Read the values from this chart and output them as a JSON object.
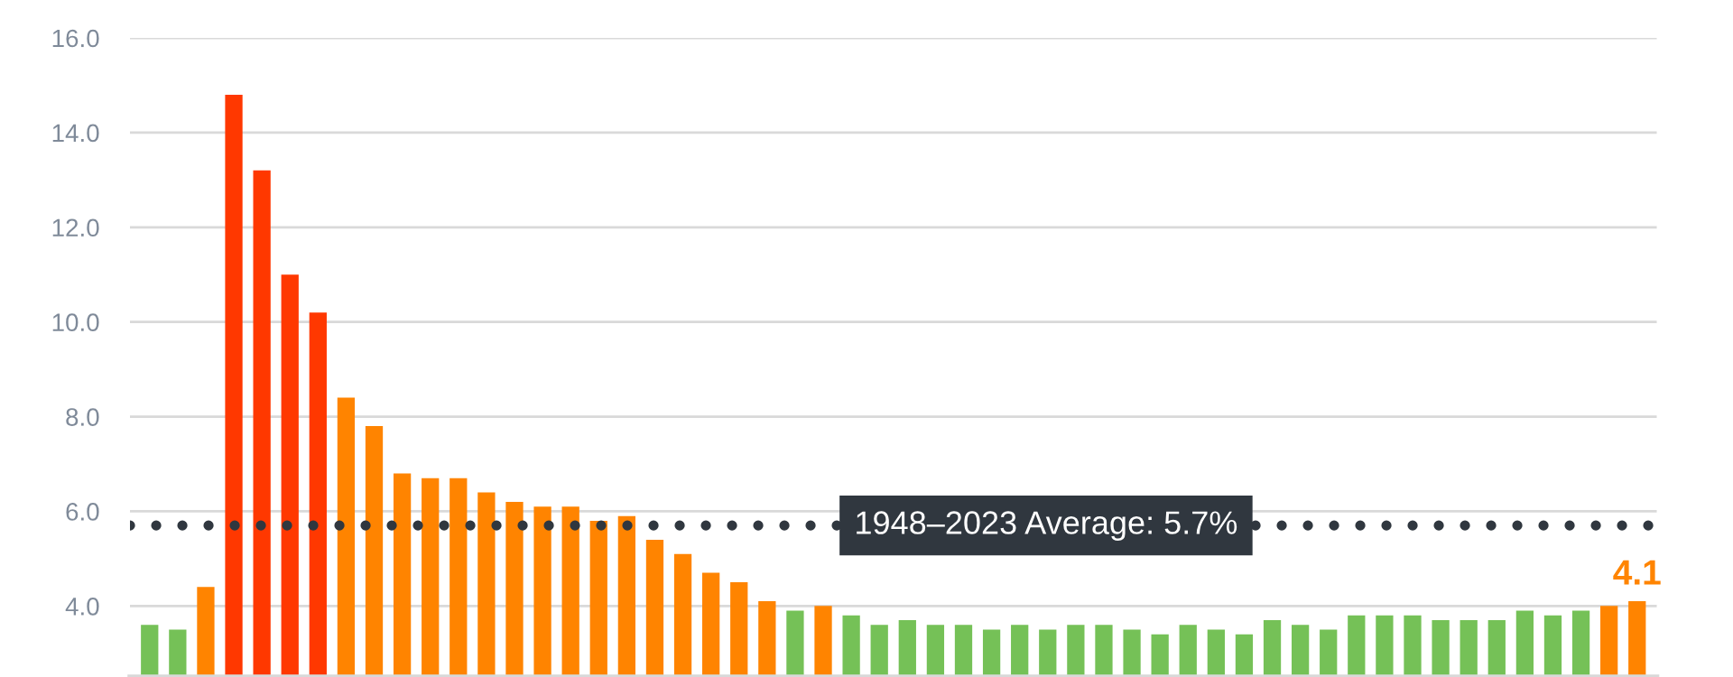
{
  "chart_data": {
    "type": "bar",
    "categories": [
      null,
      null,
      null,
      null,
      null,
      null,
      null,
      null,
      null,
      null,
      null,
      null,
      null,
      null,
      null,
      null,
      null,
      null,
      null,
      null,
      null,
      null,
      null,
      null,
      null,
      null,
      null,
      null,
      null,
      null,
      null,
      null,
      null,
      null,
      null,
      null,
      null,
      null,
      null,
      null,
      null,
      null,
      null,
      null,
      null,
      null,
      null,
      null,
      null,
      null,
      null,
      null,
      null,
      null
    ],
    "values": [
      3.6,
      3.5,
      4.4,
      14.8,
      13.2,
      11.0,
      10.2,
      8.4,
      7.8,
      6.8,
      6.7,
      6.7,
      6.4,
      6.2,
      6.1,
      6.1,
      5.8,
      5.9,
      5.4,
      5.1,
      4.7,
      4.5,
      4.1,
      3.9,
      4.0,
      3.8,
      3.6,
      3.7,
      3.6,
      3.6,
      3.5,
      3.6,
      3.5,
      3.6,
      3.6,
      3.5,
      3.4,
      3.6,
      3.5,
      3.4,
      3.7,
      3.6,
      3.5,
      3.8,
      3.8,
      3.8,
      3.7,
      3.7,
      3.7,
      3.9,
      3.8,
      3.9,
      4.0,
      4.1
    ],
    "colors": [
      "#75c157",
      "#75c157",
      "#ff8400",
      "#ff3800",
      "#ff3800",
      "#ff3800",
      "#ff3800",
      "#ff8400",
      "#ff8400",
      "#ff8400",
      "#ff8400",
      "#ff8400",
      "#ff8400",
      "#ff8400",
      "#ff8400",
      "#ff8400",
      "#ff8400",
      "#ff8400",
      "#ff8400",
      "#ff8400",
      "#ff8400",
      "#ff8400",
      "#ff8400",
      "#75c157",
      "#ff8400",
      "#75c157",
      "#75c157",
      "#75c157",
      "#75c157",
      "#75c157",
      "#75c157",
      "#75c157",
      "#75c157",
      "#75c157",
      "#75c157",
      "#75c157",
      "#75c157",
      "#75c157",
      "#75c157",
      "#75c157",
      "#75c157",
      "#75c157",
      "#75c157",
      "#75c157",
      "#75c157",
      "#75c157",
      "#75c157",
      "#75c157",
      "#75c157",
      "#75c157",
      "#75c157",
      "#75c157",
      "#ff8400",
      "#ff8400"
    ],
    "value_labels": [
      null,
      null,
      null,
      null,
      null,
      null,
      null,
      null,
      null,
      null,
      null,
      null,
      null,
      null,
      null,
      null,
      null,
      null,
      null,
      null,
      null,
      null,
      null,
      null,
      null,
      null,
      null,
      null,
      null,
      null,
      null,
      null,
      null,
      null,
      null,
      null,
      null,
      null,
      null,
      null,
      null,
      null,
      null,
      null,
      null,
      null,
      null,
      null,
      null,
      null,
      null,
      null,
      null,
      "4.1"
    ],
    "ylim": [
      2.5,
      16.0
    ],
    "yticks": [
      {
        "value": 4,
        "label": "4.0"
      },
      {
        "value": 6,
        "label": "6.0"
      },
      {
        "value": 8,
        "label": "8.0"
      },
      {
        "value": 10,
        "label": "10.0"
      },
      {
        "value": 12,
        "label": "12.0"
      },
      {
        "value": 14,
        "label": "14.0"
      },
      {
        "value": 16,
        "label": "16.0"
      }
    ],
    "tick_labels": "y",
    "grid": "y",
    "ref_lines": [
      {
        "axis": "y",
        "value": 5.7,
        "label": "1948–2023 Average: 5.7%",
        "color": "#30373f",
        "line_style": "dotted"
      }
    ]
  }
}
